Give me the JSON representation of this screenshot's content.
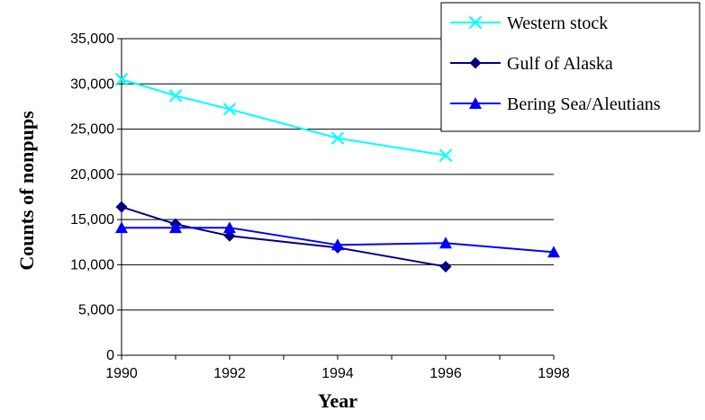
{
  "chart_data": {
    "type": "line",
    "title": "",
    "xlabel": "Year",
    "ylabel": "Counts of nonpups",
    "xlim": [
      1990,
      1998
    ],
    "ylim": [
      0,
      35000
    ],
    "x_ticks": [
      "1990",
      "1992",
      "1994",
      "1996",
      "1998"
    ],
    "y_ticks": [
      "0",
      "5,000",
      "10,000",
      "15,000",
      "20,000",
      "25,000",
      "30,000",
      "35,000"
    ],
    "grid": "horizontal",
    "legend_position": "top-right",
    "series": [
      {
        "name": "Western stock",
        "color": "#00FFFF",
        "marker": "x",
        "x": [
          1990,
          1991,
          1992,
          1994,
          1996
        ],
        "y": [
          30500,
          28700,
          27200,
          24000,
          22100
        ]
      },
      {
        "name": "Gulf of Alaska",
        "color": "#000080",
        "marker": "diamond",
        "x": [
          1990,
          1991,
          1992,
          1994,
          1996
        ],
        "y": [
          16400,
          14500,
          13200,
          11900,
          9800
        ]
      },
      {
        "name": "Bering Sea/Aleutians",
        "color": "#0000FF",
        "marker": "triangle",
        "x": [
          1990,
          1991,
          1992,
          1994,
          1996,
          1998
        ],
        "y": [
          14100,
          14100,
          14100,
          12200,
          12400,
          11400
        ]
      }
    ]
  }
}
